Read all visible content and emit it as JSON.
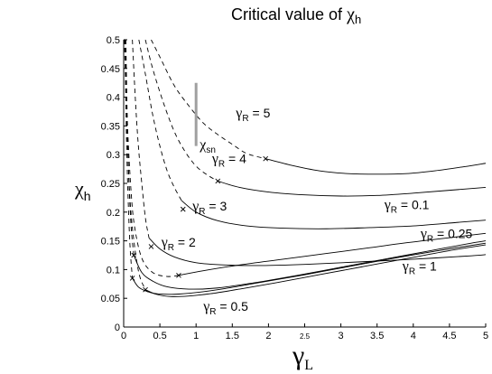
{
  "chart_data": {
    "type": "line",
    "title": "Critical value of ",
    "title_symbol": "χ",
    "title_sub": "h",
    "xlabel": "γ",
    "xlabel_sub": "L",
    "ylabel": "χ",
    "ylabel_sub": "h",
    "xlim": [
      0,
      5
    ],
    "ylim": [
      0,
      0.5
    ],
    "x_ticks": [
      {
        "value": 0,
        "label": "0"
      },
      {
        "value": 0.5,
        "label": "0.5"
      },
      {
        "value": 1,
        "label": "1"
      },
      {
        "value": 1.5,
        "label": "1.5"
      },
      {
        "value": 2,
        "label": "2"
      },
      {
        "value": 2.5,
        "label": "2.5",
        "small": true
      },
      {
        "value": 3,
        "label": "3"
      },
      {
        "value": 3.5,
        "label": "3.5"
      },
      {
        "value": 4,
        "label": "4"
      },
      {
        "value": 4.5,
        "label": "4.5"
      },
      {
        "value": 5,
        "label": "5"
      }
    ],
    "y_ticks": [
      {
        "value": 0,
        "label": "0"
      },
      {
        "value": 0.05,
        "label": "0.05"
      },
      {
        "value": 0.1,
        "label": "0.1"
      },
      {
        "value": 0.15,
        "label": "0.15"
      },
      {
        "value": 0.2,
        "label": "0.2"
      },
      {
        "value": 0.25,
        "label": "0.25"
      },
      {
        "value": 0.3,
        "label": "0.3"
      },
      {
        "value": 0.35,
        "label": "0.35"
      },
      {
        "value": 0.4,
        "label": "0.4"
      },
      {
        "value": 0.45,
        "label": "0.45"
      },
      {
        "value": 0.5,
        "label": "0.5"
      }
    ],
    "grid": false,
    "series": [
      {
        "name": "γR = 5",
        "gamma_r": 5,
        "dashed": {
          "x": [
            0.38,
            0.5,
            0.7,
            0.9,
            1.1,
            1.3,
            1.5,
            1.7,
            1.96
          ],
          "y": [
            0.5,
            0.47,
            0.42,
            0.385,
            0.355,
            0.335,
            0.318,
            0.302,
            0.293
          ]
        },
        "solid": {
          "x": [
            1.96,
            2.3,
            2.7,
            3.1,
            3.5,
            3.9,
            4.3,
            4.7,
            5.0
          ],
          "y": [
            0.293,
            0.282,
            0.272,
            0.267,
            0.266,
            0.267,
            0.272,
            0.279,
            0.285
          ]
        },
        "marker": {
          "x": 1.96,
          "y": 0.293
        }
      },
      {
        "name": "γR = 4",
        "gamma_r": 4,
        "dashed": {
          "x": [
            0.3,
            0.4,
            0.55,
            0.7,
            0.85,
            1.0,
            1.15,
            1.3
          ],
          "y": [
            0.5,
            0.45,
            0.39,
            0.34,
            0.305,
            0.28,
            0.265,
            0.254
          ]
        },
        "solid": {
          "x": [
            1.3,
            1.6,
            2.0,
            2.5,
            3.0,
            3.5,
            4.0,
            4.5,
            5.0
          ],
          "y": [
            0.254,
            0.243,
            0.235,
            0.23,
            0.228,
            0.229,
            0.233,
            0.238,
            0.243
          ]
        },
        "marker": {
          "x": 1.3,
          "y": 0.254
        }
      },
      {
        "name": "γR = 3",
        "gamma_r": 3,
        "dashed": {
          "x": [
            0.21,
            0.3,
            0.4,
            0.5,
            0.6,
            0.7,
            0.8
          ],
          "y": [
            0.5,
            0.44,
            0.37,
            0.315,
            0.272,
            0.243,
            0.22
          ]
        },
        "solid": {
          "x": [
            0.8,
            1.0,
            1.3,
            1.7,
            2.2,
            2.8,
            3.4,
            4.0,
            4.6,
            5.0
          ],
          "y": [
            0.22,
            0.2,
            0.185,
            0.176,
            0.172,
            0.171,
            0.173,
            0.176,
            0.182,
            0.186
          ]
        },
        "marker": {
          "x": 0.82,
          "y": 0.205
        }
      },
      {
        "name": "γR = 2",
        "gamma_r": 2,
        "dashed": {
          "x": [
            0.12,
            0.16,
            0.2,
            0.25,
            0.3,
            0.35
          ],
          "y": [
            0.5,
            0.4,
            0.32,
            0.25,
            0.19,
            0.155
          ]
        },
        "solid": {
          "x": [
            0.35,
            0.5,
            0.7,
            1.0,
            1.4,
            1.9,
            2.5,
            3.2,
            4.0,
            4.8,
            5.0
          ],
          "y": [
            0.155,
            0.136,
            0.122,
            0.112,
            0.108,
            0.107,
            0.109,
            0.113,
            0.118,
            0.124,
            0.126
          ]
        },
        "marker": {
          "x": 0.38,
          "y": 0.14
        }
      },
      {
        "name": "γR = 0.1",
        "gamma_r": 0.1,
        "dashed": {
          "x": [
            0.02,
            0.05,
            0.1,
            0.15,
            0.25,
            0.4,
            0.6,
            0.76
          ],
          "y": [
            0.5,
            0.36,
            0.24,
            0.175,
            0.12,
            0.095,
            0.088,
            0.09
          ]
        },
        "solid": {
          "x": [
            0.76,
            1.1,
            1.6,
            2.2,
            2.8,
            3.4,
            3.8,
            4.2,
            4.6,
            5.0
          ],
          "y": [
            0.09,
            0.098,
            0.108,
            0.118,
            0.128,
            0.138,
            0.145,
            0.151,
            0.157,
            0.163
          ]
        },
        "marker": {
          "x": 0.76,
          "y": 0.09
        }
      },
      {
        "name": "γR = 0.25",
        "gamma_r": 0.25,
        "dashed": {
          "x": [
            0.03,
            0.06,
            0.1,
            0.14
          ],
          "y": [
            0.5,
            0.3,
            0.18,
            0.125
          ]
        },
        "solid": {
          "x": [
            0.14,
            0.25,
            0.4,
            0.6,
            0.9,
            1.3,
            1.8,
            2.4,
            3.0,
            3.6,
            4.2,
            4.8,
            5.0
          ],
          "y": [
            0.125,
            0.095,
            0.08,
            0.07,
            0.066,
            0.068,
            0.077,
            0.09,
            0.104,
            0.118,
            0.132,
            0.146,
            0.15
          ]
        },
        "marker": {
          "x": 0.14,
          "y": 0.125
        }
      },
      {
        "name": "γR = 0.5",
        "gamma_r": 0.5,
        "dashed": {
          "x": [
            0.02,
            0.04,
            0.08,
            0.12
          ],
          "y": [
            0.5,
            0.32,
            0.16,
            0.085
          ]
        },
        "solid": {
          "x": [
            0.12,
            0.2,
            0.3,
            0.45,
            0.7,
            1.0,
            1.4,
            1.9,
            2.5,
            3.1,
            3.7,
            4.3,
            5.0
          ],
          "y": [
            0.085,
            0.07,
            0.063,
            0.058,
            0.057,
            0.06,
            0.067,
            0.078,
            0.091,
            0.105,
            0.119,
            0.132,
            0.146
          ]
        },
        "marker": {
          "x": 0.12,
          "y": 0.085
        }
      },
      {
        "name": "γR = 1",
        "gamma_r": 1,
        "dashed": {
          "x": [
            0.01,
            0.05,
            0.1,
            0.2,
            0.3
          ],
          "y": [
            0.5,
            0.33,
            0.2,
            0.1,
            0.065
          ]
        },
        "solid": {
          "x": [
            0.3,
            0.45,
            0.65,
            0.9,
            1.2,
            1.6,
            2.1,
            2.7,
            3.3,
            3.9,
            4.5,
            5.0
          ],
          "y": [
            0.065,
            0.057,
            0.053,
            0.054,
            0.058,
            0.066,
            0.077,
            0.091,
            0.105,
            0.119,
            0.133,
            0.143
          ]
        },
        "marker": {
          "x": 0.3,
          "y": 0.065
        }
      }
    ],
    "annotations": [
      {
        "id": "gr5",
        "base": "γ",
        "sub": "R",
        "rest": " = 5",
        "x": 1.55,
        "y": 0.365
      },
      {
        "id": "gr4",
        "base": "γ",
        "sub": "R",
        "rest": " = 4",
        "x": 1.22,
        "y": 0.285
      },
      {
        "id": "gr3",
        "base": "γ",
        "sub": "R",
        "rest": " = 3",
        "x": 0.95,
        "y": 0.203
      },
      {
        "id": "gr2",
        "base": "γ",
        "sub": "R",
        "rest": " = 2",
        "x": 0.52,
        "y": 0.14
      },
      {
        "id": "gr01",
        "base": "γ",
        "sub": "R",
        "rest": " = 0.1",
        "x": 3.6,
        "y": 0.205
      },
      {
        "id": "gr025",
        "base": "γ",
        "sub": "R",
        "rest": " = 0.25",
        "x": 4.1,
        "y": 0.155
      },
      {
        "id": "gr1",
        "base": "γ",
        "sub": "R",
        "rest": " = 1",
        "x": 3.85,
        "y": 0.098
      },
      {
        "id": "gr05",
        "base": "γ",
        "sub": "R",
        "rest": " = 0.5",
        "x": 1.1,
        "y": 0.028
      },
      {
        "id": "xsn",
        "base": "χ",
        "sub": "sn",
        "rest": "",
        "x": 1.05,
        "y": 0.31
      }
    ],
    "bar_segment": {
      "x": 1.0,
      "y_from": 0.315,
      "y_to": 0.425,
      "color": "#a0a0a0"
    },
    "colors": {
      "line": "#000000",
      "background": "#ffffff",
      "bar": "#a0a0a0"
    }
  }
}
